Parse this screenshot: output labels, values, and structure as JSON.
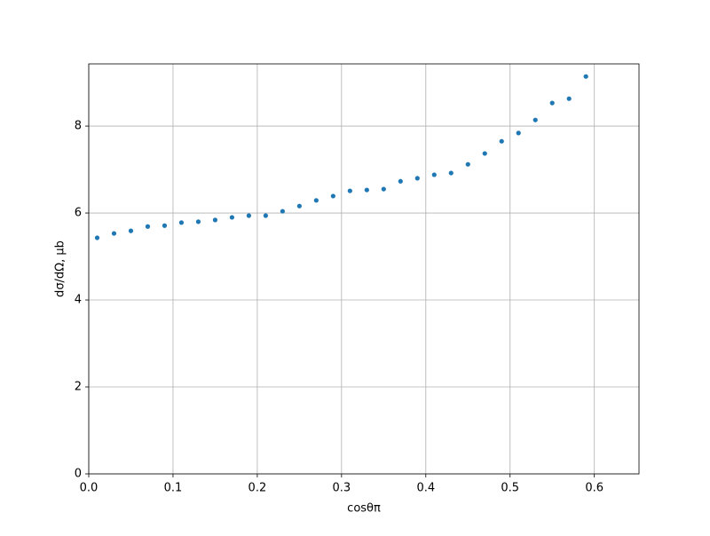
{
  "chart_data": {
    "type": "scatter",
    "xlabel": "cosθπ",
    "ylabel": "dσ/dΩ, μb",
    "x": [
      0.01,
      0.03,
      0.05,
      0.07,
      0.09,
      0.11,
      0.13,
      0.15,
      0.17,
      0.19,
      0.21,
      0.23,
      0.25,
      0.27,
      0.29,
      0.31,
      0.33,
      0.35,
      0.37,
      0.39,
      0.41,
      0.43,
      0.45,
      0.47,
      0.49,
      0.51,
      0.53,
      0.55,
      0.57,
      0.59
    ],
    "values": [
      5.43,
      5.53,
      5.59,
      5.69,
      5.71,
      5.78,
      5.8,
      5.84,
      5.9,
      5.94,
      5.94,
      6.04,
      6.16,
      6.29,
      6.39,
      6.51,
      6.53,
      6.55,
      6.73,
      6.8,
      6.88,
      6.92,
      7.12,
      7.37,
      7.65,
      7.84,
      8.14,
      8.53,
      8.63,
      9.14
    ],
    "color": "#1f77b4",
    "xlim": [
      0,
      0.653
    ],
    "ylim": [
      0,
      9.43
    ],
    "xticks": [
      {
        "value": 0,
        "label": "0.0"
      },
      0.1,
      0.2,
      0.3,
      0.4,
      0.5,
      0.6
    ],
    "yticks": [
      0,
      2,
      4,
      6,
      8
    ],
    "grid": true
  }
}
